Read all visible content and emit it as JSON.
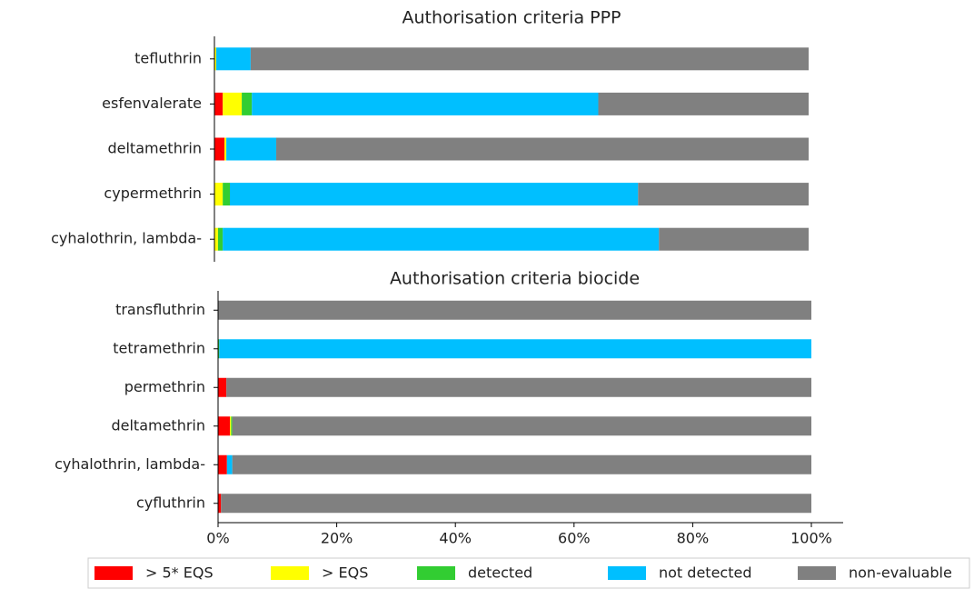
{
  "chart_data": [
    {
      "type": "barh-stacked",
      "title": "Authorisation criteria PPP",
      "categories": [
        "tefluthrin",
        "esfenvalerate",
        "deltamethrin",
        "cypermethrin",
        "cyhalothrin, lambda-"
      ],
      "xlim": [
        0,
        100
      ],
      "series": [
        {
          "name": "> 5* EQS",
          "color": "#ff0000",
          "values": [
            0,
            1.4,
            1.7,
            0,
            0
          ]
        },
        {
          "name": "> EQS",
          "color": "#ffff00",
          "values": [
            0.3,
            3.2,
            0.3,
            1.4,
            0.6
          ]
        },
        {
          "name": "detected",
          "color": "#32cd32",
          "values": [
            0,
            1.7,
            0,
            1.2,
            0.8
          ]
        },
        {
          "name": "not detected",
          "color": "#00bfff",
          "values": [
            5.8,
            58.3,
            8.4,
            68.7,
            73.4
          ]
        },
        {
          "name": "non-evaluable",
          "color": "#808080",
          "values": [
            93.9,
            35.4,
            89.6,
            28.7,
            25.2
          ]
        }
      ]
    },
    {
      "type": "barh-stacked",
      "title": "Authorisation criteria biocide",
      "categories": [
        "transfluthrin",
        "tetramethrin",
        "permethrin",
        "deltamethrin",
        "cyhalothrin, lambda-",
        "cyfluthrin"
      ],
      "xlim": [
        0,
        100
      ],
      "xticks": [
        {
          "value": 0,
          "label": "0%"
        },
        {
          "value": 20,
          "label": "20%"
        },
        {
          "value": 40,
          "label": "40%"
        },
        {
          "value": 60,
          "label": "60%"
        },
        {
          "value": 80,
          "label": "80%"
        },
        {
          "value": 100,
          "label": "100%"
        }
      ],
      "series": [
        {
          "values": [
            0,
            0,
            1.4,
            2.0,
            1.5,
            0.5
          ]
        },
        {
          "values": [
            0,
            0,
            0,
            0.2,
            0,
            0
          ]
        },
        {
          "values": [
            0,
            0.2,
            0,
            0.2,
            0,
            0
          ]
        },
        {
          "values": [
            0,
            99.8,
            0,
            0,
            0.9,
            0
          ]
        },
        {
          "values": [
            100,
            0,
            98.6,
            97.6,
            97.6,
            99.5
          ]
        }
      ]
    }
  ]
}
